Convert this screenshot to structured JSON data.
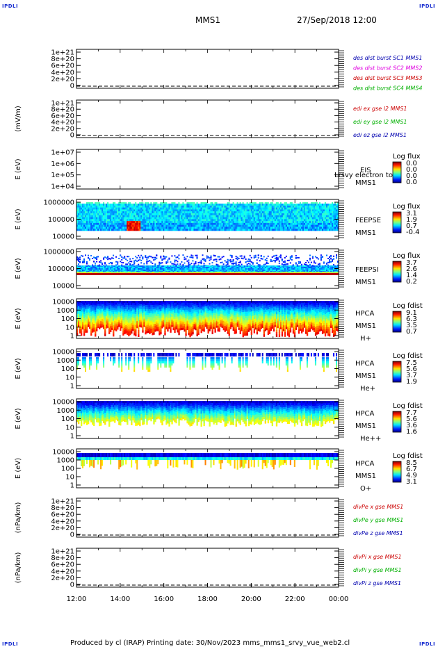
{
  "corner_label": "IPDLI",
  "header": {
    "spacecraft": "MMS1",
    "datetime": "27/Sep/2018 12:00"
  },
  "footer": "Produced by cl (IRAP)   Printing date: 30/Nov/2023   mms_mms1_srvy_vue_web2.cl",
  "chart_data": [
    {
      "type": "line",
      "ylabel": "",
      "ticks": [
        "1e+21",
        "8e+20",
        "6e+20",
        "4e+20",
        "2e+20",
        "0"
      ],
      "legend": [
        {
          "text": "des dist burst SC1 MMS1",
          "color": "#0000b0"
        },
        {
          "text": "des dist burst SC2 MMS2",
          "color": "#e000e0"
        },
        {
          "text": "des dist burst SC3 MMS3",
          "color": "#cc0000"
        },
        {
          "text": "des dist burst SC4 MMS4",
          "color": "#00b000"
        }
      ]
    },
    {
      "type": "line",
      "ylabel": "(mV/m)",
      "ticks": [
        "1e+21",
        "8e+20",
        "6e+20",
        "4e+20",
        "2e+20",
        "0"
      ],
      "legend": [
        {
          "text": "edi ex gse l2 MMS1",
          "color": "#cc0000"
        },
        {
          "text": "edi ey gse l2 MMS1",
          "color": "#00b000"
        },
        {
          "text": "edi ez gse l2 MMS1",
          "color": "#0000b0"
        }
      ]
    },
    {
      "type": "heatmap",
      "ylabel": "E (eV)",
      "ticks": [
        "1e+07",
        "1e+06",
        "1e+05",
        "1e+04"
      ],
      "instrument": [
        "EIS",
        "MMS1"
      ],
      "overlay": "Lrsvy electron to",
      "cbar_title": "Log flux",
      "cbar_ticks": [
        "0.0",
        "0.0",
        "0.0",
        "0.0"
      ],
      "pattern": "none"
    },
    {
      "type": "heatmap",
      "ylabel": "E (eV)",
      "ticks": [
        "1000000",
        "100000",
        "10000"
      ],
      "instrument": [
        "FEEPSE",
        "MMS1"
      ],
      "cbar_title": "Log flux",
      "cbar_ticks": [
        "3.1",
        "1.9",
        "0.7",
        "-0.4"
      ],
      "pattern": "feepse"
    },
    {
      "type": "heatmap",
      "ylabel": "E (eV)",
      "ticks": [
        "1000000",
        "100000",
        "10000"
      ],
      "instrument": [
        "FEEPSI",
        "MMS1"
      ],
      "cbar_title": "Log flux",
      "cbar_ticks": [
        "3.7",
        "2.6",
        "1.4",
        "0.2"
      ],
      "pattern": "feepsi"
    },
    {
      "type": "heatmap",
      "ylabel": "E (eV)",
      "ticks": [
        "10000",
        "1000",
        "100",
        "10",
        "1"
      ],
      "instrument": [
        "HPCA",
        "MMS1",
        "H+"
      ],
      "cbar_title": "Log fdist",
      "cbar_ticks": [
        "9.1",
        "6.3",
        "3.5",
        "0.7"
      ],
      "pattern": "hplus"
    },
    {
      "type": "heatmap",
      "ylabel": "E (eV)",
      "ticks": [
        "10000",
        "1000",
        "100",
        "10",
        "1"
      ],
      "instrument": [
        "HPCA",
        "MMS1",
        "He+"
      ],
      "cbar_title": "Log fdist",
      "cbar_ticks": [
        "7.5",
        "5.6",
        "3.7",
        "1.9"
      ],
      "pattern": "heplus"
    },
    {
      "type": "heatmap",
      "ylabel": "E (eV)",
      "ticks": [
        "10000",
        "1000",
        "100",
        "10",
        "1"
      ],
      "instrument": [
        "HPCA",
        "MMS1",
        "He++"
      ],
      "cbar_title": "Log fdist",
      "cbar_ticks": [
        "7.7",
        "5.6",
        "3.6",
        "1.6"
      ],
      "pattern": "heplusplus"
    },
    {
      "type": "heatmap",
      "ylabel": "E (eV)",
      "ticks": [
        "10000",
        "1000",
        "100",
        "10",
        "1"
      ],
      "instrument": [
        "HPCA",
        "MMS1",
        "O+"
      ],
      "cbar_title": "Log fdist",
      "cbar_ticks": [
        "8.5",
        "6.7",
        "4.9",
        "3.1"
      ],
      "pattern": "oplus"
    },
    {
      "type": "line",
      "ylabel": "(nPa/km)",
      "ticks": [
        "1e+21",
        "8e+20",
        "6e+20",
        "4e+20",
        "2e+20",
        "0"
      ],
      "legend": [
        {
          "text": "divPe x gse MMS1",
          "color": "#cc0000"
        },
        {
          "text": "divPe y gse MMS1",
          "color": "#00b000"
        },
        {
          "text": "divPe z gse MMS1",
          "color": "#0000b0"
        }
      ]
    },
    {
      "type": "line",
      "ylabel": "(nPa/km)",
      "ticks": [
        "1e+21",
        "8e+20",
        "6e+20",
        "4e+20",
        "2e+20",
        "0"
      ],
      "legend": [
        {
          "text": "divPi x gse MMS1",
          "color": "#cc0000"
        },
        {
          "text": "divPi y gse MMS1",
          "color": "#00b000"
        },
        {
          "text": "divPi z gse MMS1",
          "color": "#0000b0"
        }
      ]
    }
  ],
  "xaxis": {
    "ticks": [
      "12:00",
      "14:00",
      "16:00",
      "18:00",
      "20:00",
      "22:00",
      "00:00"
    ]
  }
}
